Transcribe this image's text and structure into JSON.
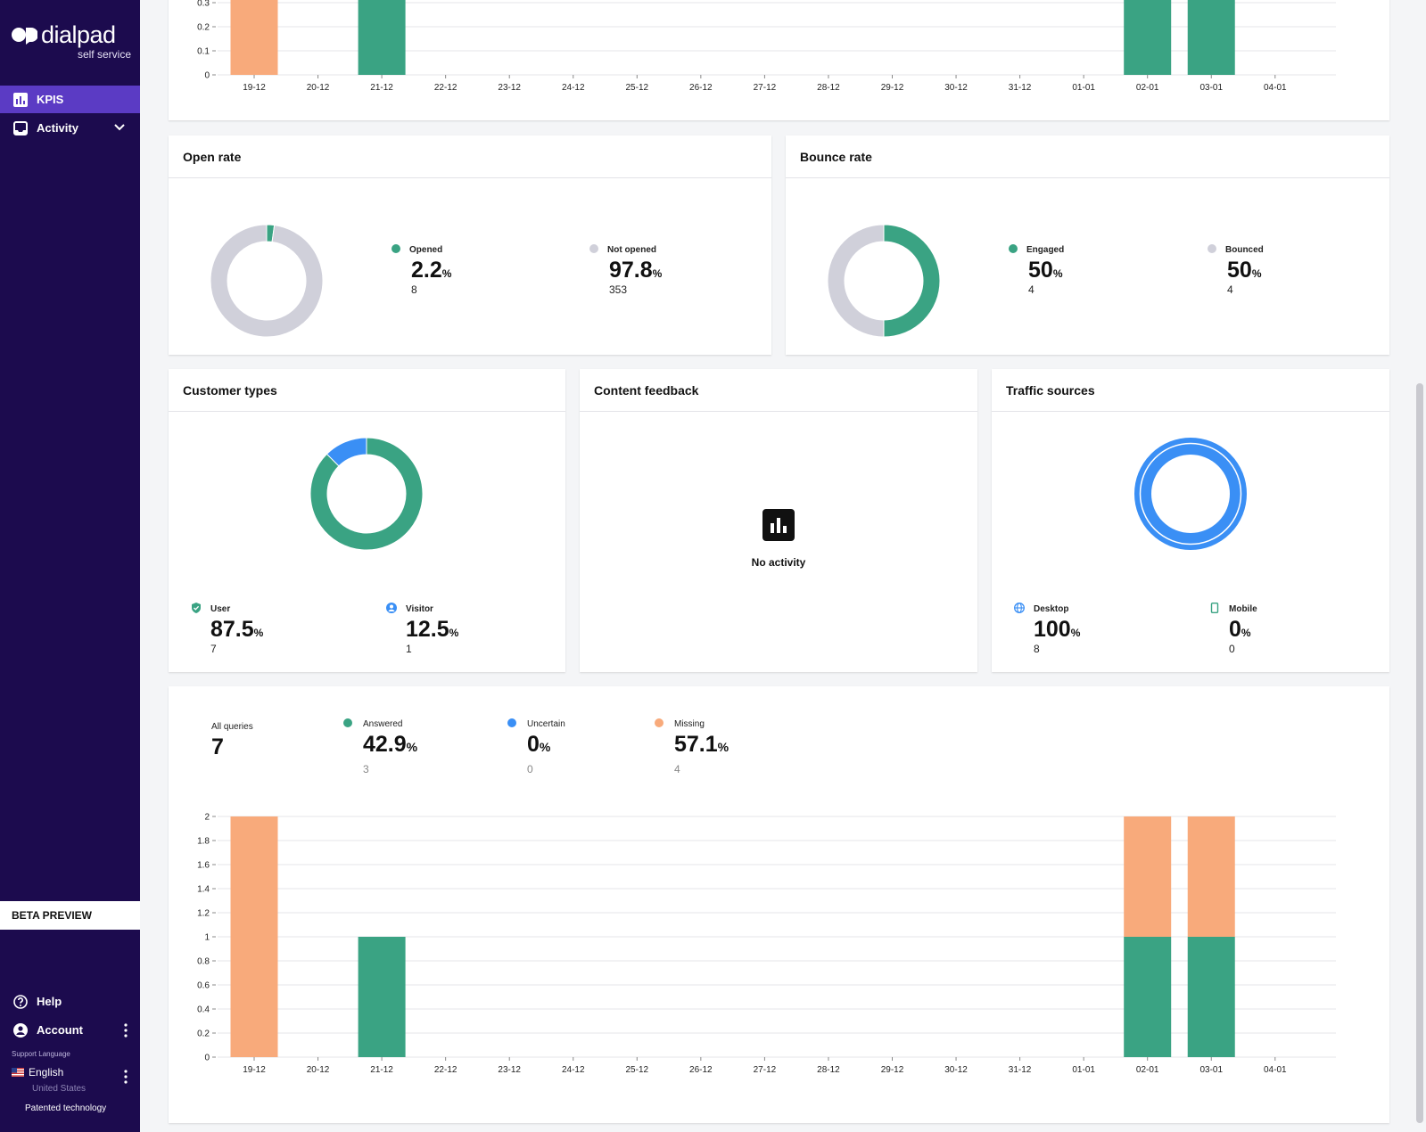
{
  "brand": {
    "name": "dialpad",
    "sub": "self service"
  },
  "nav": {
    "kpis": "KPIS",
    "activity": "Activity"
  },
  "sidebar": {
    "beta": "BETA PREVIEW",
    "help": "Help",
    "account": "Account",
    "support_label": "Support Language",
    "language": "English",
    "region": "United States",
    "patent": "Patented technology"
  },
  "dates": [
    "19-12",
    "20-12",
    "21-12",
    "22-12",
    "23-12",
    "24-12",
    "25-12",
    "26-12",
    "27-12",
    "28-12",
    "29-12",
    "30-12",
    "31-12",
    "01-01",
    "02-01",
    "03-01",
    "04-01"
  ],
  "colors": {
    "green": "#3aa383",
    "orange": "#f8aa7b",
    "blue": "#3a8ff5",
    "grey": "#d0d0da",
    "sidebar": "#1c0b4e",
    "accent": "#5b3bc4"
  },
  "open_rate": {
    "title": "Open rate",
    "opened": {
      "label": "Opened",
      "value": "2.2",
      "unit": "%",
      "count": "8"
    },
    "not_opened": {
      "label": "Not opened",
      "value": "97.8",
      "unit": "%",
      "count": "353"
    }
  },
  "bounce_rate": {
    "title": "Bounce rate",
    "engaged": {
      "label": "Engaged",
      "value": "50",
      "unit": "%",
      "count": "4"
    },
    "bounced": {
      "label": "Bounced",
      "value": "50",
      "unit": "%",
      "count": "4"
    }
  },
  "customer_types": {
    "title": "Customer types",
    "user": {
      "label": "User",
      "value": "87.5",
      "unit": "%",
      "count": "7"
    },
    "visitor": {
      "label": "Visitor",
      "value": "12.5",
      "unit": "%",
      "count": "1"
    }
  },
  "content_feedback": {
    "title": "Content feedback",
    "empty": "No activity"
  },
  "traffic_sources": {
    "title": "Traffic sources",
    "desktop": {
      "label": "Desktop",
      "value": "100",
      "unit": "%",
      "count": "8"
    },
    "mobile": {
      "label": "Mobile",
      "value": "0",
      "unit": "%",
      "count": "0"
    }
  },
  "queries": {
    "all": {
      "label": "All queries",
      "value": "7"
    },
    "answered": {
      "label": "Answered",
      "value": "42.9",
      "unit": "%",
      "count": "3"
    },
    "uncertain": {
      "label": "Uncertain",
      "value": "0",
      "unit": "%",
      "count": "0"
    },
    "missing": {
      "label": "Missing",
      "value": "57.1",
      "unit": "%",
      "count": "4"
    }
  },
  "chart_data": [
    {
      "type": "bar",
      "stacked": true,
      "categories": [
        "19-12",
        "20-12",
        "21-12",
        "22-12",
        "23-12",
        "24-12",
        "25-12",
        "26-12",
        "27-12",
        "28-12",
        "29-12",
        "30-12",
        "31-12",
        "01-01",
        "02-01",
        "03-01",
        "04-01"
      ],
      "yticks_visible": [
        "0.3",
        "0.2",
        "0.1",
        "0"
      ],
      "series": [
        {
          "color": "#3aa383",
          "values": [
            0,
            0,
            1,
            0,
            0,
            0,
            0,
            0,
            0,
            0,
            0,
            0,
            0,
            0,
            1,
            1,
            0
          ]
        },
        {
          "color": "#f8aa7b",
          "values": [
            2,
            0,
            0,
            0,
            0,
            0,
            0,
            0,
            0,
            0,
            0,
            0,
            0,
            0,
            1,
            1,
            0
          ]
        }
      ],
      "cropped": "top"
    },
    {
      "type": "pie",
      "title": "Open rate",
      "slices": [
        {
          "name": "Opened",
          "value": 2.2,
          "color": "#3aa383"
        },
        {
          "name": "Not opened",
          "value": 97.8,
          "color": "#d0d0da"
        }
      ]
    },
    {
      "type": "pie",
      "title": "Bounce rate",
      "slices": [
        {
          "name": "Engaged",
          "value": 50,
          "color": "#3aa383"
        },
        {
          "name": "Bounced",
          "value": 50,
          "color": "#d0d0da"
        }
      ]
    },
    {
      "type": "pie",
      "title": "Customer types",
      "slices": [
        {
          "name": "User",
          "value": 87.5,
          "color": "#3aa383"
        },
        {
          "name": "Visitor",
          "value": 12.5,
          "color": "#3a8ff5"
        }
      ]
    },
    {
      "type": "pie",
      "title": "Traffic sources",
      "slices": [
        {
          "name": "Desktop",
          "value": 100,
          "color": "#3a8ff5"
        },
        {
          "name": "Mobile",
          "value": 0,
          "color": "#3aa383"
        }
      ]
    },
    {
      "type": "bar",
      "stacked": true,
      "categories": [
        "19-12",
        "20-12",
        "21-12",
        "22-12",
        "23-12",
        "24-12",
        "25-12",
        "26-12",
        "27-12",
        "28-12",
        "29-12",
        "30-12",
        "31-12",
        "01-01",
        "02-01",
        "03-01",
        "04-01"
      ],
      "ylim": [
        0,
        2
      ],
      "yticks": [
        "0",
        "0.2",
        "0.4",
        "0.6",
        "0.8",
        "1",
        "1.2",
        "1.4",
        "1.6",
        "1.8",
        "2"
      ],
      "series": [
        {
          "name": "Answered",
          "color": "#3aa383",
          "values": [
            0,
            0,
            1,
            0,
            0,
            0,
            0,
            0,
            0,
            0,
            0,
            0,
            0,
            0,
            1,
            1,
            0
          ]
        },
        {
          "name": "Uncertain",
          "color": "#3a8ff5",
          "values": [
            0,
            0,
            0,
            0,
            0,
            0,
            0,
            0,
            0,
            0,
            0,
            0,
            0,
            0,
            0,
            0,
            0
          ]
        },
        {
          "name": "Missing",
          "color": "#f8aa7b",
          "values": [
            2,
            0,
            0,
            0,
            0,
            0,
            0,
            0,
            0,
            0,
            0,
            0,
            0,
            0,
            1,
            1,
            0
          ]
        }
      ]
    }
  ]
}
